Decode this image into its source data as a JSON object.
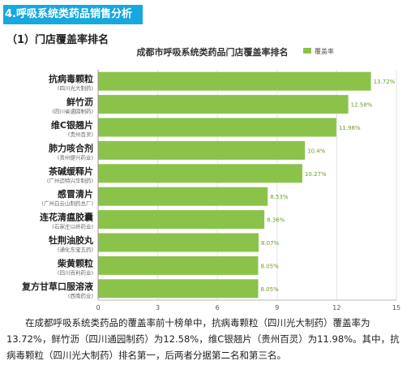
{
  "header": {
    "section_title": "4.呼吸系统类药品销售分析",
    "sub_title": "（1）门店覆盖率排名"
  },
  "colors": {
    "title_bg": "#16a8e0",
    "bar": "#8bc34a",
    "bar_label": "#6a9e2a"
  },
  "chart_data": {
    "type": "bar",
    "orientation": "horizontal",
    "title": "成都市呼吸系统类药品门店覆盖率排名",
    "legend": [
      "覆盖率"
    ],
    "legend_position": "top-right",
    "categories": [
      "抗病毒颗粒",
      "鲜竹沥",
      "维C银翘片",
      "肺力咳合剂",
      "茶碱缓释片",
      "感冒清片",
      "连花清瘟胶囊",
      "牡荆油胶丸",
      "柴黄颗粒",
      "复方甘草口服溶液"
    ],
    "subcategories": [
      "(四川光大制药)",
      "(四川省通园制药)",
      "(贵州百灵)",
      "(贵州健兴药业)",
      "(广州迈特兴华制药)",
      "(广州白云山制药总厂)",
      "(石家庄以岭药业)",
      "(通化东宝五药)",
      "(四川百利药业)",
      "(西南药业)"
    ],
    "values": [
      13.72,
      12.58,
      11.98,
      10.4,
      10.27,
      8.53,
      8.36,
      8.07,
      8.05,
      8.05
    ],
    "value_labels": [
      "13.72%",
      "12.58%",
      "11.98%",
      "10.4%",
      "10.27%",
      "8.53%",
      "8.36%",
      "8.07%",
      "8.05%",
      "8.05%"
    ],
    "xlim": [
      0,
      15
    ],
    "xticks": [
      "0",
      "3",
      "6",
      "9",
      "12",
      "15"
    ],
    "grid": true
  },
  "paragraph": "在成都呼吸系统类药品的覆盖率前十榜单中，抗病毒颗粒（四川光大制药）覆盖率为13.72%，鲜竹沥（四川通园制药）为12.58%，维C银翘片（贵州百灵）为11.98%。其中，抗病毒颗粒（四川光大制药）排名第一，后两者分据第二名和第三名。"
}
